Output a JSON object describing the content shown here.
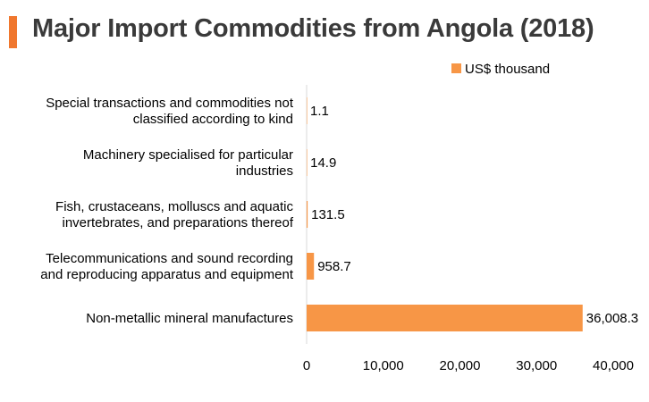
{
  "chart_data": {
    "type": "bar",
    "orientation": "horizontal",
    "title": "Major Import Commodities from Angola (2018)",
    "categories": [
      [
        "Special transactions and commodities not",
        "classified according to kind"
      ],
      [
        "Machinery specialised for particular",
        "industries"
      ],
      [
        "Fish, crustaceans, molluscs and aquatic",
        "invertebrates, and preparations thereof"
      ],
      [
        "Telecommunications and sound recording",
        "and reproducing apparatus and equipment"
      ],
      [
        "Non-metallic mineral manufactures"
      ]
    ],
    "series": [
      {
        "name": "US$ thousand",
        "values": [
          1.1,
          14.9,
          131.5,
          958.7,
          36008.3
        ],
        "labels": [
          "1.1",
          "14.9",
          "131.5",
          "958.7",
          "36,008.3"
        ]
      }
    ],
    "xlim": [
      0,
      40000
    ],
    "xticks": [
      0,
      10000,
      20000,
      30000,
      40000
    ],
    "xtick_labels": [
      "0",
      "10,000",
      "20,000",
      "30,000",
      "40,000"
    ],
    "grid": false,
    "legend": "top-right"
  },
  "colors": {
    "bar": "#f79646",
    "accent": "#f0772e",
    "axis": "#d9d9d9"
  }
}
